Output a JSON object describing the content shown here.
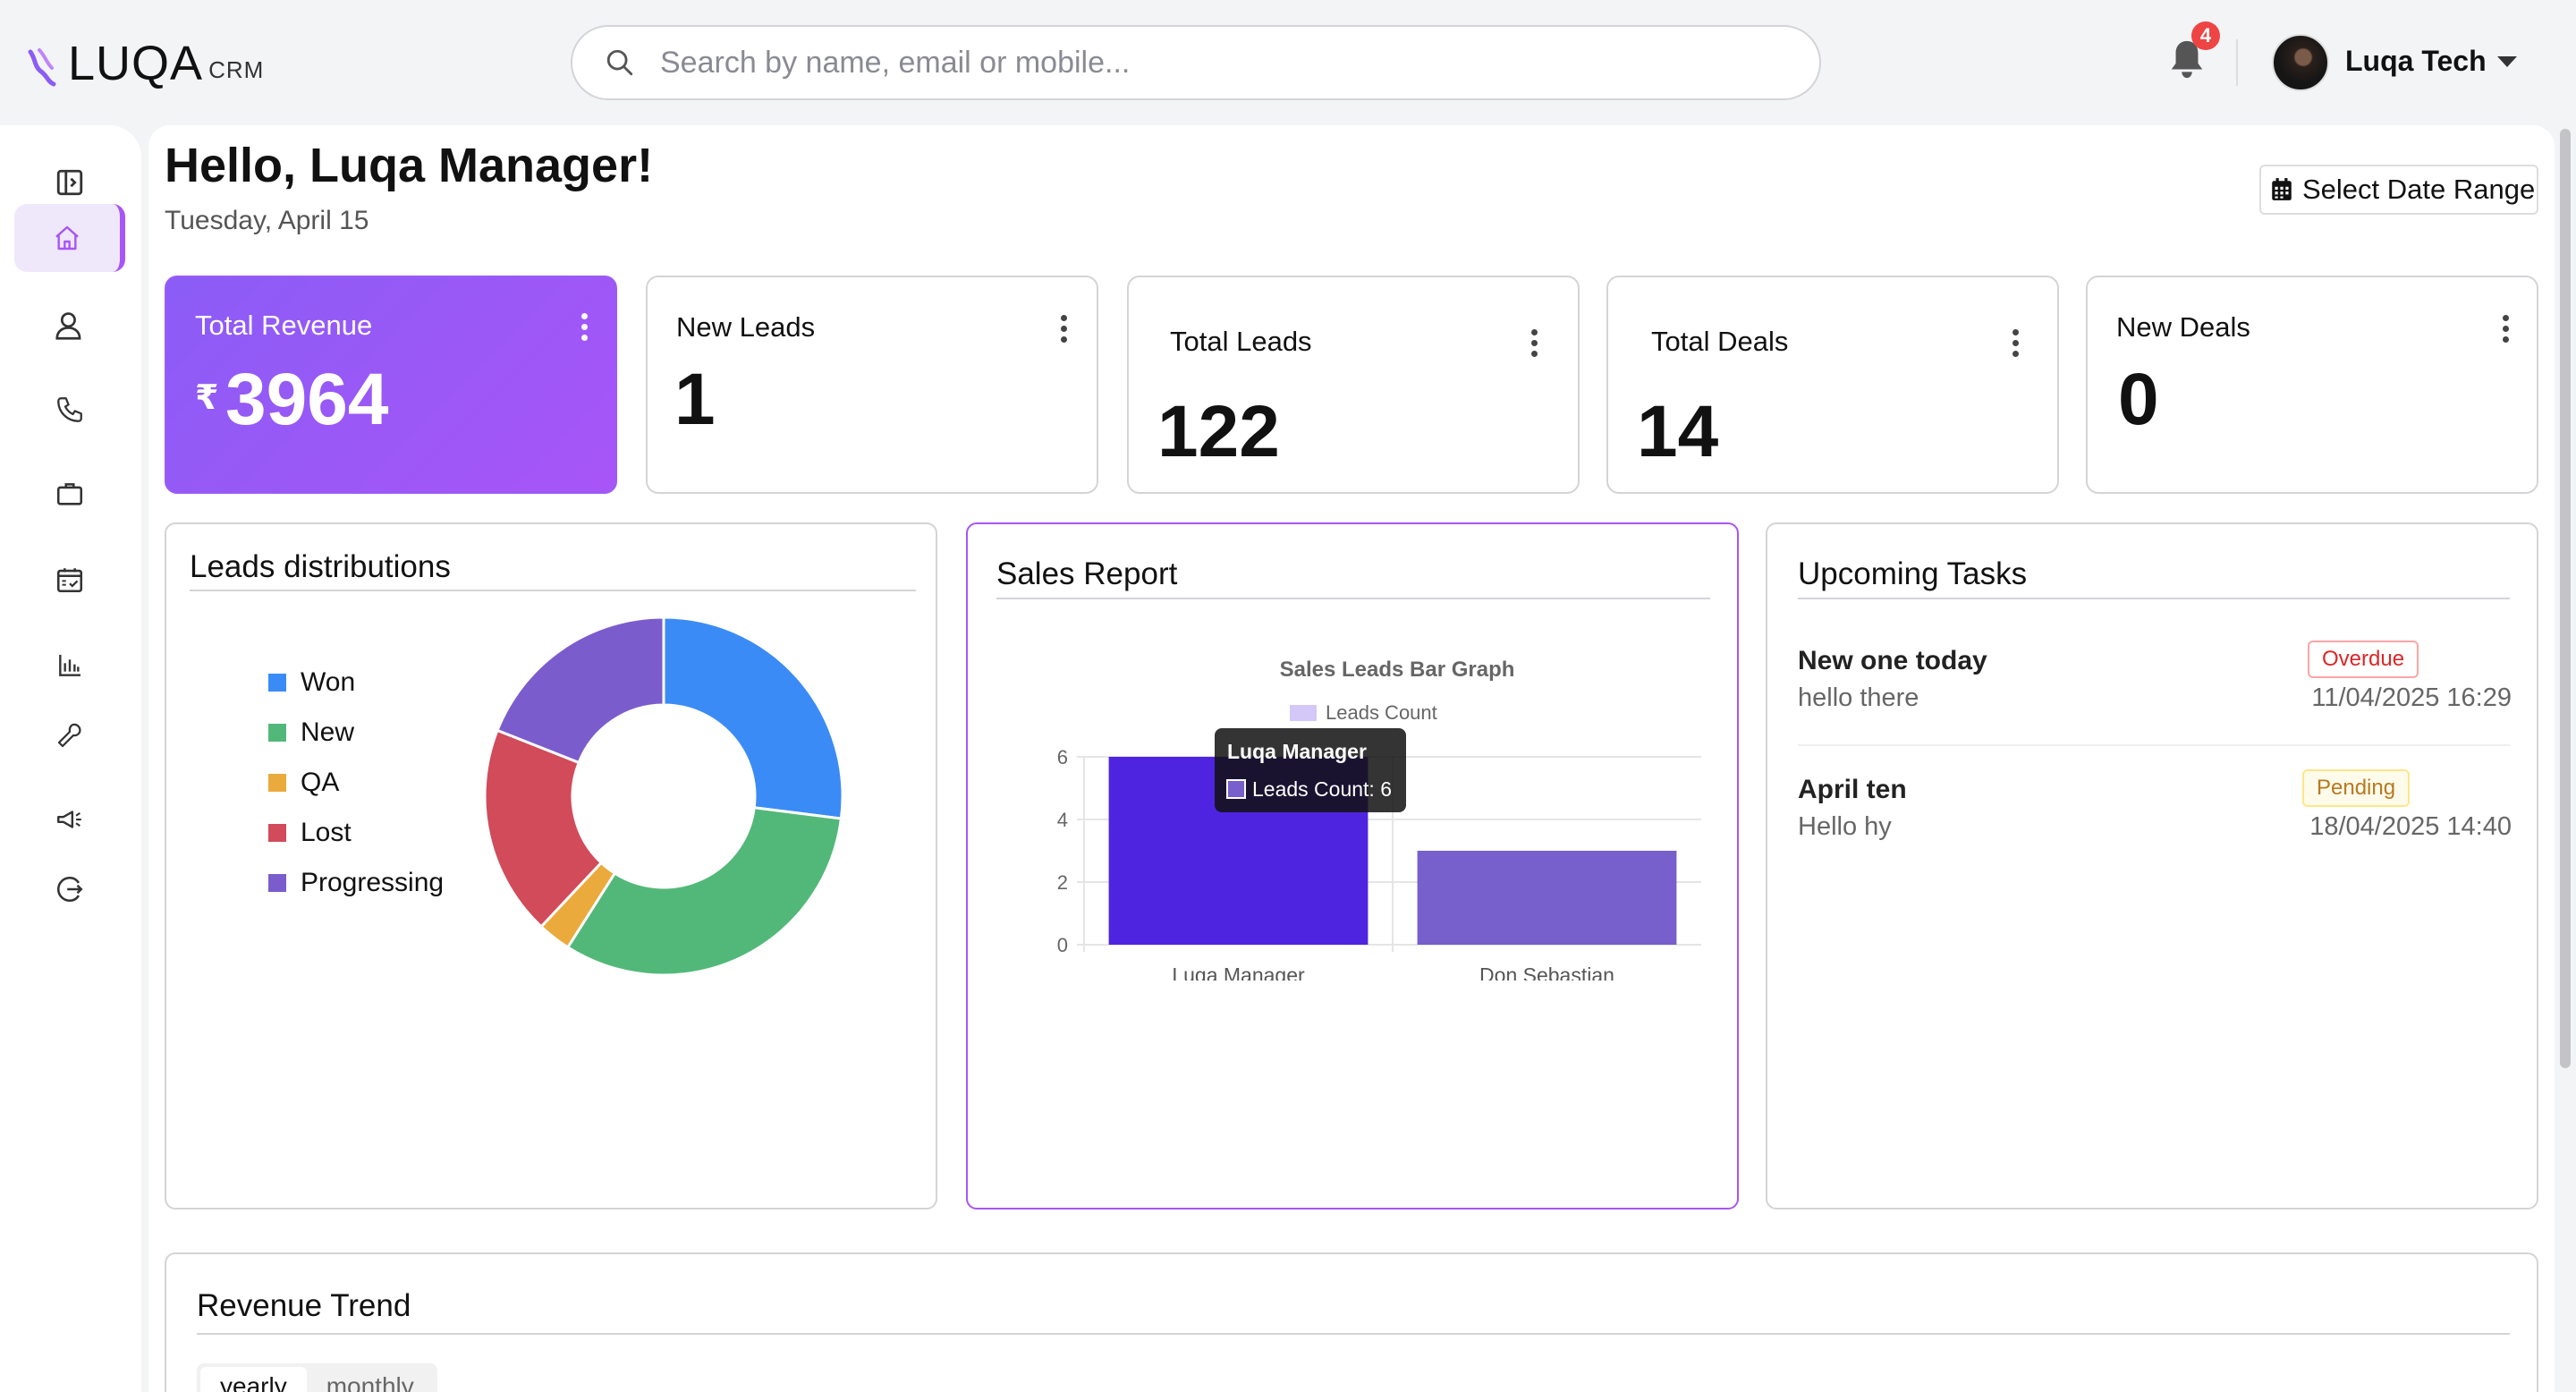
{
  "header": {
    "logo_text": "LUQA",
    "logo_suffix": "CRM",
    "search_placeholder": "Search by name, email or mobile...",
    "notification_count": "4",
    "user_name": "Luqa Tech"
  },
  "sidebar": {
    "items": [
      {
        "name": "sidebar-toggle",
        "icon": "sidebar-collapse-icon"
      },
      {
        "name": "home",
        "icon": "home-icon",
        "active": true
      },
      {
        "name": "contacts",
        "icon": "user-icon"
      },
      {
        "name": "calls",
        "icon": "phone-icon"
      },
      {
        "name": "deals",
        "icon": "briefcase-icon"
      },
      {
        "name": "tasks",
        "icon": "calendar-check-icon"
      },
      {
        "name": "reports",
        "icon": "bar-chart-icon"
      },
      {
        "name": "tools",
        "icon": "wrench-icon"
      },
      {
        "name": "campaigns",
        "icon": "megaphone-icon"
      },
      {
        "name": "logout",
        "icon": "logout-icon"
      }
    ]
  },
  "page": {
    "greeting": "Hello, Luqa Manager!",
    "date": "Tuesday, April 15",
    "date_range_label": "Select Date Range"
  },
  "stats": [
    {
      "label": "Total Revenue",
      "currency": "₹",
      "value": "3964"
    },
    {
      "label": "New Leads",
      "value": "1"
    },
    {
      "label": "Total Leads",
      "value": "122"
    },
    {
      "label": "Total Deals",
      "value": "14"
    },
    {
      "label": "New Deals",
      "value": "0"
    }
  ],
  "leads_distribution": {
    "title": "Leads distributions",
    "legend": [
      {
        "label": "Won",
        "color": "#3b8bf6"
      },
      {
        "label": "New",
        "color": "#52b879"
      },
      {
        "label": "QA",
        "color": "#eaaa3c"
      },
      {
        "label": "Lost",
        "color": "#d14b5a"
      },
      {
        "label": "Progressing",
        "color": "#7b5ccd"
      }
    ]
  },
  "chart_data": [
    {
      "type": "pie",
      "title": "",
      "categories": [
        "Won",
        "New",
        "QA",
        "Lost",
        "Progressing"
      ],
      "values": [
        27,
        32,
        3,
        19,
        19
      ],
      "colors": [
        "#3b8bf6",
        "#52b879",
        "#eaaa3c",
        "#d14b5a",
        "#7b5ccd"
      ],
      "legend_placement": "left"
    },
    {
      "type": "bar",
      "title": "Sales Leads Bar Graph",
      "categories": [
        "Luqa Manager",
        "Don Sebastian"
      ],
      "series": [
        {
          "name": "Leads Count",
          "values": [
            6,
            3
          ]
        }
      ],
      "colors": [
        "#4f24e0",
        "#775fcc"
      ],
      "ylim": [
        0,
        6
      ],
      "yticks": [
        0,
        2,
        4,
        6
      ],
      "grid": true,
      "legend_placement": "top",
      "tooltip": {
        "title": "Luqa Manager",
        "text": "Leads Count: 6"
      }
    }
  ],
  "sales_report": {
    "title": "Sales Report",
    "chart_title": "Sales Leads Bar Graph",
    "legend_label": "Leads Count",
    "tooltip_title": "Luqa Manager",
    "tooltip_text": "Leads Count: 6",
    "x_labels": [
      "Luqa Manager",
      "Don Sebastian"
    ],
    "y_labels": [
      "6",
      "4",
      "2",
      "0"
    ]
  },
  "tasks": {
    "title": "Upcoming Tasks",
    "items": [
      {
        "title": "New one today",
        "subtitle": "hello there",
        "status": "Overdue",
        "datetime": "11/04/2025 16:29"
      },
      {
        "title": "April ten",
        "subtitle": "Hello hy",
        "status": "Pending",
        "datetime": "18/04/2025 14:40"
      }
    ]
  },
  "revenue_trend": {
    "title": "Revenue Trend",
    "tabs": [
      "yearly",
      "monthly"
    ]
  }
}
